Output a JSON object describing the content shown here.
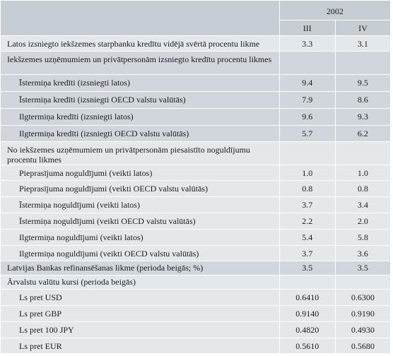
{
  "header": {
    "year": "2002",
    "quarters": [
      "III",
      "IV"
    ]
  },
  "rows": [
    {
      "label": "Latos izsniegto iekšzemes starpbanku kredītu vidējā svērtā procentu likme",
      "v1": "3.3",
      "v2": "3.1"
    },
    {
      "label": "Iekšzemes uzņēmumiem un privātpersonām izsniegto kredītu procentu likmes",
      "v1": "",
      "v2": ""
    },
    {
      "label": "Īstermiņa kredīti (izsniegti latos)",
      "v1": "9.4",
      "v2": "9.5"
    },
    {
      "label": "Īstermiņa kredīti (izsniegti OECD valstu valūtās)",
      "v1": "7.9",
      "v2": "8.6"
    },
    {
      "label": "Ilgtermiņa kredīti (izsniegti latos)",
      "v1": "9.6",
      "v2": "9.3"
    },
    {
      "label": "Ilgtermiņa kredīti (izsniegti OECD valstu valūtās)",
      "v1": "5.7",
      "v2": "6.2"
    },
    {
      "label": "No iekšzemes uzņēmumiem un privātpersonām piesaistīto noguldījumu procentu likmes",
      "v1": "",
      "v2": ""
    },
    {
      "label": "Pieprasījuma noguldījumi (veikti latos)",
      "v1": "1.0",
      "v2": "1.0"
    },
    {
      "label": "Pieprasījuma noguldījumi (veikti OECD valstu valūtās)",
      "v1": "0.8",
      "v2": "0.8"
    },
    {
      "label": "Īstermiņa noguldījumi (veikti latos)",
      "v1": "3.7",
      "v2": "3.4"
    },
    {
      "label": "Īstermiņa noguldījumi (veikti OECD valstu valūtās)",
      "v1": "2.2",
      "v2": "2.0"
    },
    {
      "label": "Ilgtermiņa noguldījumi (veikti latos)",
      "v1": "5.4",
      "v2": "5.8"
    },
    {
      "label": "Ilgtermiņa noguldījumi (veikti OECD valstu valūtās)",
      "v1": "3.7",
      "v2": "3.6"
    },
    {
      "label": "Latvijas Bankas refinansēšanas likme (perioda beigās; %)",
      "v1": "3.5",
      "v2": "3.5"
    },
    {
      "label": "Ārvalstu valūtu kursi (perioda beigās)",
      "v1": "",
      "v2": ""
    },
    {
      "label": "Ls pret USD",
      "v1": "0.6410",
      "v2": "0.6300"
    },
    {
      "label": "Ls pret GBP",
      "v1": "0.9140",
      "v2": "0.9190"
    },
    {
      "label": "Ls pret 100 JPY",
      "v1": "0.4820",
      "v2": "0.4930"
    },
    {
      "label": "Ls pret EUR",
      "v1": "0.5610",
      "v2": "0.5680"
    }
  ]
}
